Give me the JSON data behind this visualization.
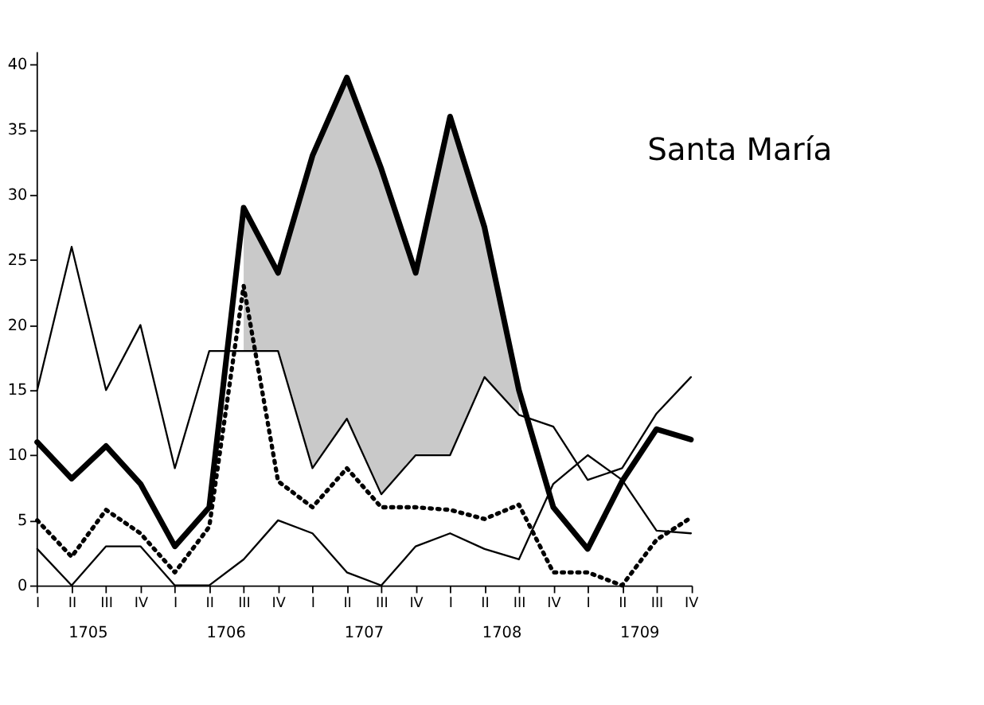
{
  "chart_data": {
    "type": "line",
    "title": "Santa María",
    "categories": [
      "I",
      "II",
      "III",
      "IV",
      "I",
      "II",
      "III",
      "IV",
      "I",
      "II",
      "III",
      "IV",
      "I",
      "II",
      "III",
      "IV",
      "I",
      "II",
      "III",
      "IV"
    ],
    "annotations": [
      "1705",
      "1706",
      "1707",
      "1708",
      "1709"
    ],
    "ylim": [
      0,
      41
    ],
    "yticks": [
      0,
      5,
      10,
      15,
      20,
      25,
      30,
      35,
      40
    ],
    "grid": false,
    "marker": "none",
    "series": [
      {
        "color": "#000000",
        "line_style": "solid",
        "values": [
          11,
          8.2,
          10.7,
          7.8,
          3,
          6,
          29,
          24,
          33,
          39,
          32,
          24,
          36,
          27.5,
          15,
          6,
          2.8,
          8,
          12,
          11.2
        ],
        "lower": [
          null,
          null,
          null,
          null,
          null,
          null,
          18,
          18,
          9,
          12.8,
          7,
          10,
          10,
          16,
          13.1,
          null,
          null,
          null,
          null,
          null
        ],
        "upper": [
          null,
          null,
          null,
          null,
          null,
          null,
          29,
          24,
          33,
          39,
          32,
          24,
          36,
          27.5,
          15,
          null,
          null,
          null,
          null,
          null
        ]
      },
      {
        "color": "#000000",
        "line_style": "solid",
        "values": [
          15,
          26,
          15,
          20,
          9,
          18,
          18,
          18,
          9,
          12.8,
          7,
          10,
          10,
          16,
          13.1,
          12.2,
          8.1,
          9,
          13.2,
          16
        ]
      },
      {
        "color": "#000000",
        "line_style": "dotted",
        "values": [
          5,
          2.2,
          5.8,
          4,
          1,
          4.5,
          23,
          8,
          6,
          9,
          6,
          6,
          5.8,
          5.1,
          6.2,
          1,
          1,
          0,
          3.5,
          5.2
        ]
      },
      {
        "color": "#000000",
        "line_style": "solid",
        "values": [
          2.8,
          0,
          3,
          3,
          0,
          0,
          2,
          5,
          4,
          1,
          0,
          3,
          4,
          2.8,
          2,
          7.8,
          10,
          8.1,
          4.2,
          4
        ]
      }
    ]
  }
}
